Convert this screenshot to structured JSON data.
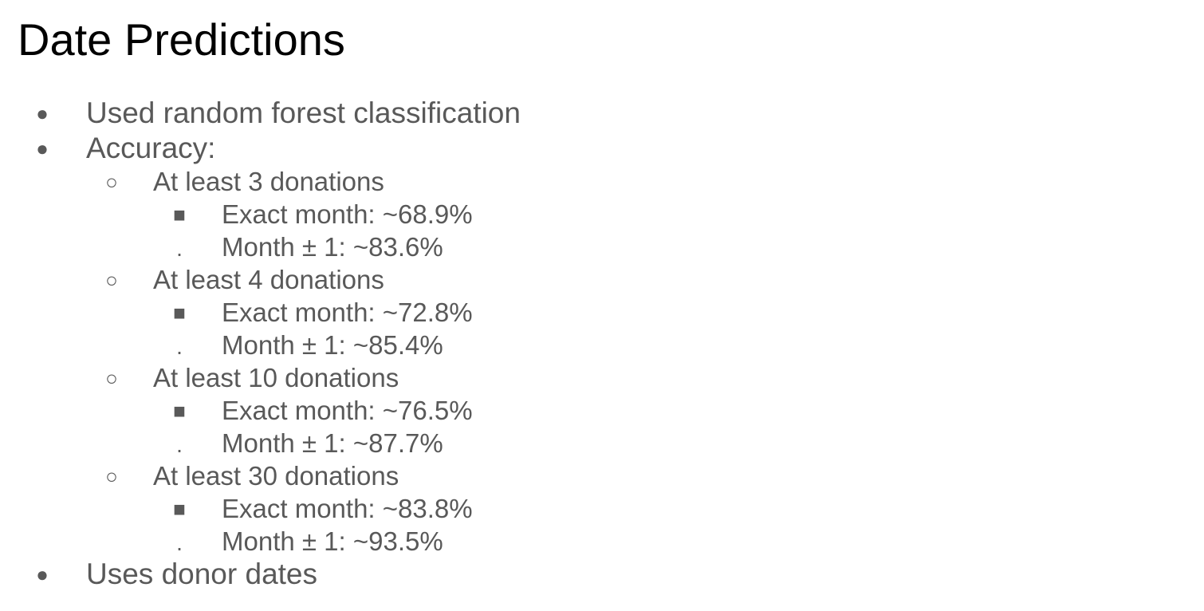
{
  "slide": {
    "title": "Date Predictions",
    "bullets": [
      {
        "glyph": "●",
        "text": "Used random forest classification"
      },
      {
        "glyph": "●",
        "text": "Accuracy:"
      },
      {
        "groups": [
          {
            "glyph": "○",
            "text": "At least 3 donations",
            "items": [
              {
                "glyph": "■",
                "text": "Exact month: ~68.9%"
              },
              {
                "glyph": ".",
                "text": "Month ± 1: ~83.6%"
              }
            ]
          },
          {
            "glyph": "○",
            "text": "At least 4 donations",
            "items": [
              {
                "glyph": "■",
                "text": "Exact month: ~72.8%"
              },
              {
                "glyph": ".",
                "text": "Month ± 1: ~85.4%"
              }
            ]
          },
          {
            "glyph": "○",
            "text": "At least 10 donations",
            "items": [
              {
                "glyph": "■",
                "text": "Exact month: ~76.5%"
              },
              {
                "glyph": ".",
                "text": "Month ± 1: ~87.7%"
              }
            ]
          },
          {
            "glyph": "○",
            "text": "At least 30 donations",
            "items": [
              {
                "glyph": "■",
                "text": "Exact month: ~83.8%"
              },
              {
                "glyph": ".",
                "text": "Month ± 1: ~93.5%"
              }
            ]
          }
        ]
      },
      {
        "glyph": "●",
        "text": "Uses donor dates"
      }
    ]
  }
}
